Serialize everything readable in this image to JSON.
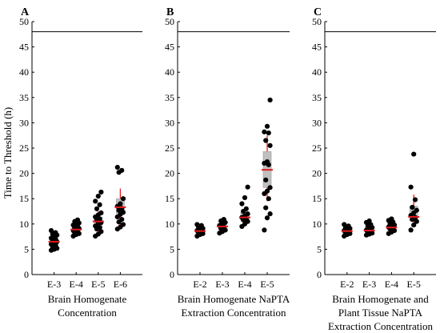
{
  "figure": {
    "ylabel": "Time to Threshold (h)",
    "ylim": [
      0,
      50
    ],
    "yticks": [
      0,
      5,
      10,
      15,
      20,
      25,
      30,
      35,
      40,
      45,
      50
    ],
    "threshold_line": 48,
    "colors": {
      "points": "#000000",
      "median": "#e31a1c",
      "box": "#c0c0c0",
      "box_edge": "#9a9a9a",
      "axis": "#000000"
    }
  },
  "chart_data": [
    {
      "type": "scatter",
      "panel_label": "A",
      "xlabel": [
        "Brain Homogenate",
        "Concentration"
      ],
      "categories": [
        "E-3",
        "E-4",
        "E-5",
        "E-6"
      ],
      "series": [
        {
          "category": "E-3",
          "values": [
            4.8,
            5.0,
            5.2,
            5.5,
            5.8,
            6.0,
            6.2,
            6.5,
            6.8,
            7.0,
            7.2,
            7.5,
            7.8,
            8.0,
            8.3,
            8.7
          ],
          "box": [
            5.6,
            7.2
          ],
          "median": 6.5,
          "whisker": [
            5.0,
            8.0
          ]
        },
        {
          "category": "E-4",
          "values": [
            7.6,
            7.9,
            8.1,
            8.3,
            8.5,
            8.7,
            8.9,
            9.1,
            9.3,
            9.5,
            9.8,
            10.0,
            10.2,
            10.5,
            10.8
          ],
          "box": [
            8.2,
            9.6
          ],
          "median": 8.9,
          "whisker": [
            7.8,
            10.0
          ]
        },
        {
          "category": "E-5",
          "values": [
            7.6,
            8.0,
            8.5,
            9.0,
            9.3,
            9.6,
            10.0,
            10.3,
            10.7,
            11.0,
            11.4,
            11.8,
            12.2,
            13.0,
            13.8,
            14.5,
            15.5,
            16.3
          ],
          "box": [
            9.2,
            11.4
          ],
          "median": 10.5,
          "whisker": [
            8.3,
            12.5
          ]
        },
        {
          "category": "E-6",
          "values": [
            9.0,
            9.4,
            9.9,
            10.4,
            10.9,
            11.4,
            11.9,
            12.3,
            12.7,
            13.1,
            13.5,
            14.0,
            15.0,
            20.2,
            20.6,
            21.2
          ],
          "box": [
            12.0,
            15.0
          ],
          "median": 13.3,
          "whisker": [
            9.5,
            17.0
          ]
        }
      ]
    },
    {
      "type": "scatter",
      "panel_label": "B",
      "xlabel": [
        "Brain Homogenate NaPTA",
        "Extraction Concentration"
      ],
      "categories": [
        "E-2",
        "E-3",
        "E-4",
        "E-5"
      ],
      "series": [
        {
          "category": "E-2",
          "values": [
            7.6,
            7.9,
            8.1,
            8.3,
            8.5,
            8.7,
            8.9,
            9.1,
            9.4,
            9.7,
            9.9
          ],
          "box": [
            8.1,
            9.0
          ],
          "median": 8.6,
          "whisker": [
            7.9,
            9.4
          ]
        },
        {
          "category": "E-3",
          "values": [
            8.2,
            8.5,
            8.8,
            9.1,
            9.4,
            9.7,
            10.0,
            10.3,
            10.6,
            10.9
          ],
          "box": [
            8.9,
            10.0
          ],
          "median": 9.5,
          "whisker": [
            8.5,
            10.3
          ]
        },
        {
          "category": "E-4",
          "values": [
            9.5,
            10.0,
            10.5,
            10.8,
            11.0,
            11.3,
            11.6,
            12.0,
            12.5,
            13.0,
            14.0,
            15.2,
            17.3
          ],
          "box": [
            10.6,
            12.3
          ],
          "median": 11.3,
          "whisker": [
            9.9,
            13.0
          ]
        },
        {
          "category": "E-5",
          "values": [
            8.8,
            11.2,
            12.0,
            13.2,
            15.0,
            16.0,
            16.5,
            17.2,
            18.7,
            21.7,
            22.0,
            22.3,
            25.5,
            26.5,
            28.0,
            28.2,
            29.3,
            34.5
          ],
          "box": [
            17.2,
            24.3
          ],
          "median": 20.7,
          "whisker": [
            14.5,
            27.5
          ]
        }
      ]
    },
    {
      "type": "scatter",
      "panel_label": "C",
      "xlabel": [
        "Brain Homogenate and",
        "Plant Tissue NaPTA",
        "Extraction Concentration"
      ],
      "categories": [
        "E-2",
        "E-3",
        "E-4",
        "E-5"
      ],
      "series": [
        {
          "category": "E-2",
          "values": [
            7.6,
            7.9,
            8.1,
            8.3,
            8.5,
            8.7,
            8.9,
            9.1,
            9.3,
            9.6,
            9.9
          ],
          "box": [
            8.1,
            9.0
          ],
          "median": 8.6,
          "whisker": [
            7.8,
            9.5
          ]
        },
        {
          "category": "E-3",
          "values": [
            7.8,
            8.0,
            8.2,
            8.4,
            8.6,
            8.8,
            9.0,
            9.3,
            9.6,
            9.9,
            10.3,
            10.6
          ],
          "box": [
            8.2,
            9.3
          ],
          "median": 8.7,
          "whisker": [
            7.9,
            9.9
          ]
        },
        {
          "category": "E-4",
          "values": [
            8.1,
            8.4,
            8.7,
            9.0,
            9.2,
            9.4,
            9.6,
            9.8,
            10.1,
            10.4,
            10.7,
            11.0
          ],
          "box": [
            8.8,
            9.9
          ],
          "median": 9.3,
          "whisker": [
            8.3,
            10.5
          ]
        },
        {
          "category": "E-5",
          "values": [
            8.8,
            9.8,
            10.5,
            10.9,
            11.3,
            11.7,
            12.2,
            12.7,
            13.3,
            14.8,
            17.3,
            23.8
          ],
          "box": [
            10.6,
            13.5
          ],
          "median": 11.4,
          "whisker": [
            9.8,
            15.8
          ]
        }
      ]
    }
  ]
}
